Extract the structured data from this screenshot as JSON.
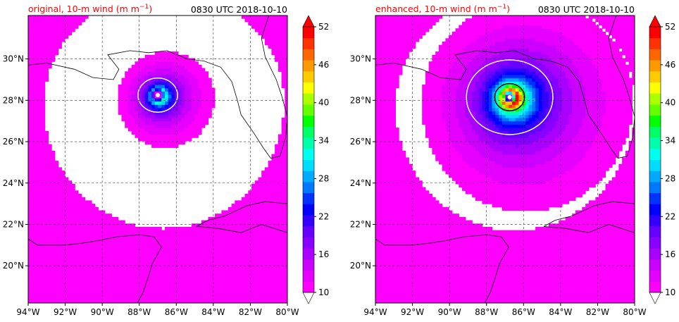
{
  "chart_data": [
    {
      "type": "heatmap",
      "panel": "left",
      "title_left": "original, 10-m wind (m m",
      "title_left_exp": "−1",
      "title_left_close": ")",
      "title_right": "0830 UTC 2018-10-10",
      "xlim": [
        -94,
        -80
      ],
      "ylim": [
        18.2,
        32.1
      ],
      "xticks": [
        "94°W",
        "92°W",
        "90°W",
        "88°W",
        "86°W",
        "84°W",
        "82°W",
        "80°W"
      ],
      "xtick_values": [
        -94,
        -92,
        -90,
        -88,
        -86,
        -84,
        -82,
        -80
      ],
      "yticks": [
        "20°N",
        "22°N",
        "24°N",
        "26°N",
        "28°N",
        "30°N"
      ],
      "ytick_values": [
        20,
        22,
        24,
        26,
        28,
        30
      ],
      "grid": true,
      "storm_center": {
        "lon": -87.0,
        "lat": 28.25
      },
      "max_wind": 32
    },
    {
      "type": "heatmap",
      "panel": "right",
      "title_left": "enhanced, 10-m wind (m m",
      "title_left_exp": "−1",
      "title_left_close": ")",
      "title_right": "0830 UTC 2018-10-10",
      "xlim": [
        -94,
        -80
      ],
      "ylim": [
        18.2,
        32.1
      ],
      "xticks": [
        "94°W",
        "92°W",
        "90°W",
        "88°W",
        "86°W",
        "84°W",
        "82°W",
        "80°W"
      ],
      "xtick_values": [
        -94,
        -92,
        -90,
        -88,
        -86,
        -84,
        -82,
        -80
      ],
      "yticks": [
        "20°N",
        "22°N",
        "24°N",
        "26°N",
        "28°N",
        "30°N"
      ],
      "ytick_values": [
        20,
        22,
        24,
        26,
        28,
        30
      ],
      "grid": true,
      "storm_center": {
        "lon": -86.75,
        "lat": 28.15
      },
      "max_wind": 52
    }
  ],
  "colorbar": {
    "ticks": [
      "10",
      "16",
      "22",
      "28",
      "34",
      "40",
      "46",
      "52"
    ],
    "tick_values": [
      10,
      16,
      22,
      28,
      34,
      40,
      46,
      52
    ],
    "range": [
      10,
      52
    ],
    "levels": 21,
    "colors": [
      "#ff00ff",
      "#e600ff",
      "#cc00ff",
      "#aa00ff",
      "#8800ff",
      "#6600ff",
      "#3300ff",
      "#0000ff",
      "#0033ff",
      "#0077ff",
      "#00aaff",
      "#00ddff",
      "#00ffee",
      "#00ffaa",
      "#00ff66",
      "#00ff00",
      "#66ff00",
      "#aaff00",
      "#ffff00",
      "#ffcc00",
      "#ff9900",
      "#ff6600",
      "#ff3300",
      "#ff0000"
    ],
    "extend": "both"
  }
}
